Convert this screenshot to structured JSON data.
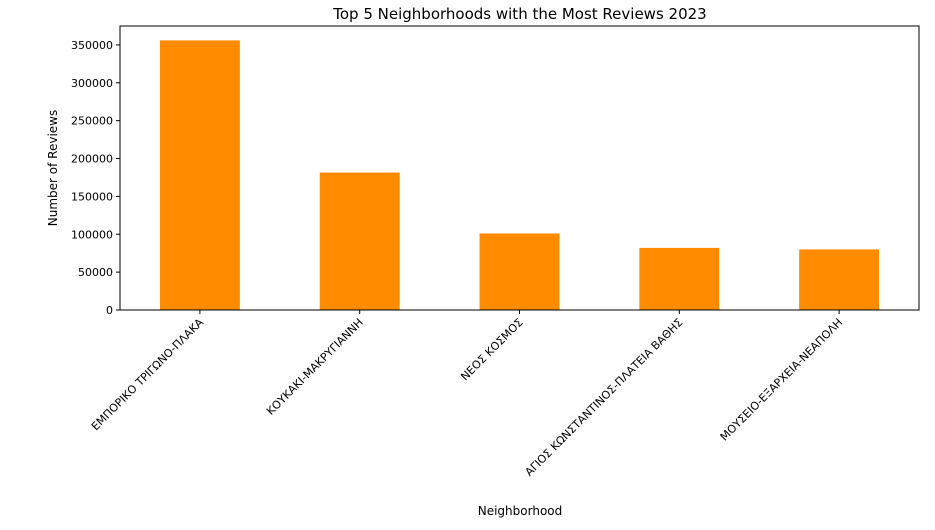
{
  "chart_data": {
    "type": "bar",
    "title": "Top 5 Neighborhoods with the Most Reviews 2023",
    "xlabel": "Neighborhood",
    "ylabel": "Number of Reviews",
    "categories": [
      "ΕΜΠΟΡΙΚΟ ΤΡΙΓΩΝΟ-ΠΛΑΚΑ",
      "ΚΟΥΚΑΚΙ-ΜΑΚΡΥΓΙΑΝΝΗ",
      "ΝΕΟΣ ΚΟΣΜΟΣ",
      "ΑΓΙΟΣ ΚΩΝΣΤΑΝΤΙΝΟΣ-ΠΛΑΤΕΙΑ ΒΑΘΗΣ",
      "ΜΟΥΣΕΙΟ-ΕΞΑΡΧΕΙΑ-ΝΕΑΠΟΛΗ"
    ],
    "values": [
      356000,
      181500,
      101000,
      82000,
      80000
    ],
    "ylim": [
      0,
      375000
    ],
    "yticks": [
      0,
      50000,
      100000,
      150000,
      200000,
      250000,
      300000,
      350000
    ],
    "bar_color": "#ff8c00",
    "grid": false,
    "legend": "none"
  }
}
